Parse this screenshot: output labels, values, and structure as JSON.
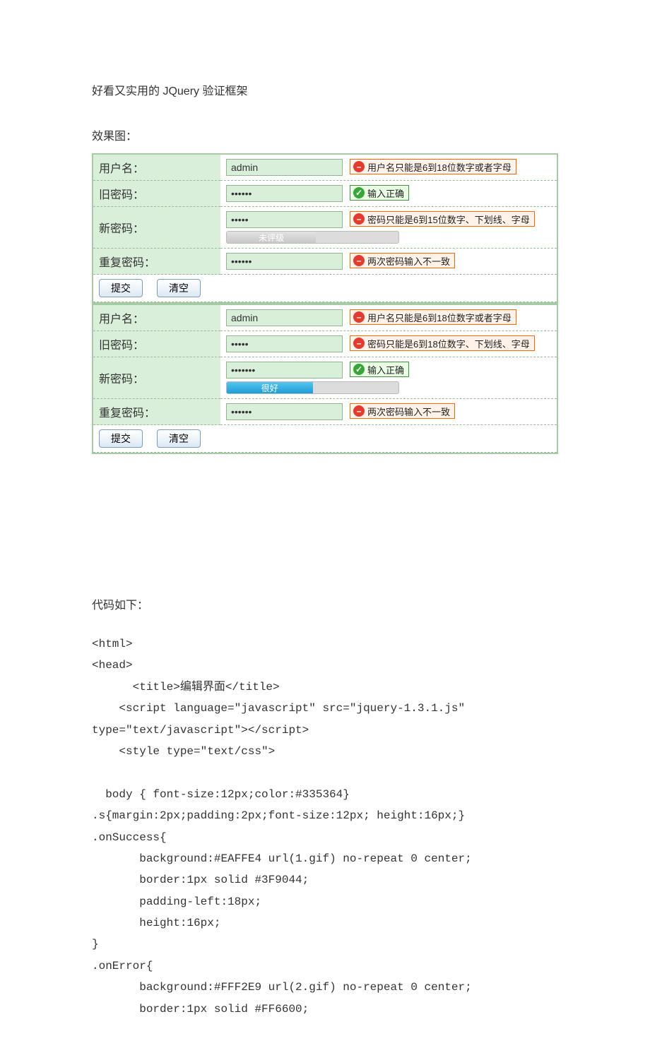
{
  "title": "好看又实用的 JQuery 验证框架",
  "demo_label": "效果图：",
  "code_label": "代码如下：",
  "colors": {
    "form_row_bg": "#d9efd9",
    "form_border": "#a6c9a6",
    "error_bg": "#FFF2E9",
    "error_border": "#FF6600",
    "success_bg": "#EAFFE4",
    "success_border": "#3F9044",
    "body_text": "#335364"
  },
  "forms": [
    {
      "rows": [
        {
          "label": "用户名：",
          "value": "admin",
          "type": "text",
          "status": "error",
          "message": "用户名只能是6到18位数字或者字母"
        },
        {
          "label": "旧密码：",
          "value": "••••••",
          "type": "password",
          "status": "success",
          "message": "输入正确"
        },
        {
          "label": "新密码：",
          "value": "•••••",
          "type": "password",
          "status": "error",
          "message": "密码只能是6到15位数字、下划线、字母",
          "meter": {
            "width_pct": 52,
            "style": "gray",
            "text": "未评级"
          }
        },
        {
          "label": "重复密码：",
          "value": "••••••",
          "type": "password",
          "status": "error",
          "message": "两次密码输入不一致"
        }
      ],
      "submit": "提交",
      "reset": "清空"
    },
    {
      "rows": [
        {
          "label": "用户名：",
          "value": "admin",
          "type": "text",
          "status": "error",
          "message": "用户名只能是6到18位数字或者字母"
        },
        {
          "label": "旧密码：",
          "value": "•••••",
          "type": "password",
          "status": "error",
          "message": "密码只能是6到18位数字、下划线、字母"
        },
        {
          "label": "新密码：",
          "value": "•••••••",
          "type": "password",
          "status": "success",
          "message": "输入正确",
          "meter": {
            "width_pct": 50,
            "style": "blue",
            "text": "很好"
          }
        },
        {
          "label": "重复密码：",
          "value": "••••••",
          "type": "password",
          "status": "error",
          "message": "两次密码输入不一致"
        }
      ],
      "submit": "提交",
      "reset": "清空"
    }
  ],
  "code_lines": [
    "<html>",
    "<head>",
    "      <title>编辑界面</title>",
    "    <script language=\"javascript\" src=\"jquery-1.3.1.js\" type=\"text/javascript\"></script>",
    "    <style type=\"text/css\">",
    "",
    "  body { font-size:12px;color:#335364}",
    ".s{margin:2px;padding:2px;font-size:12px; height:16px;}",
    ".onSuccess{",
    "       background:#EAFFE4 url(1.gif) no-repeat 0 center;",
    "       border:1px solid #3F9044;",
    "       padding-left:18px;",
    "       height:16px;",
    "}",
    ".onError{",
    "       background:#FFF2E9 url(2.gif) no-repeat 0 center;",
    "       border:1px solid #FF6600;"
  ]
}
